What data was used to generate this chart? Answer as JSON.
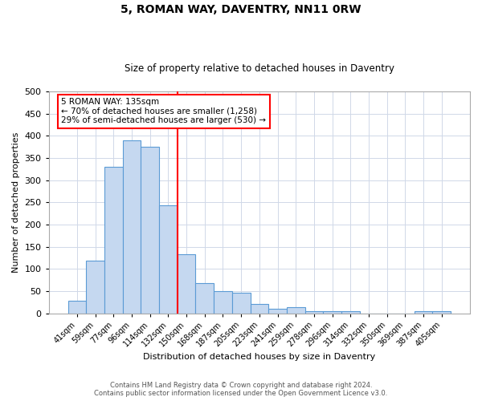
{
  "title": "5, ROMAN WAY, DAVENTRY, NN11 0RW",
  "subtitle": "Size of property relative to detached houses in Daventry",
  "xlabel": "Distribution of detached houses by size in Daventry",
  "ylabel": "Number of detached properties",
  "bar_labels": [
    "41sqm",
    "59sqm",
    "77sqm",
    "96sqm",
    "114sqm",
    "132sqm",
    "150sqm",
    "168sqm",
    "187sqm",
    "205sqm",
    "223sqm",
    "241sqm",
    "259sqm",
    "278sqm",
    "296sqm",
    "314sqm",
    "332sqm",
    "350sqm",
    "369sqm",
    "387sqm",
    "405sqm"
  ],
  "bar_values": [
    28,
    118,
    330,
    390,
    375,
    243,
    133,
    68,
    50,
    46,
    20,
    10,
    14,
    5,
    5,
    5,
    0,
    0,
    0,
    5,
    5
  ],
  "bar_color": "#c5d8f0",
  "bar_edge_color": "#5b9bd5",
  "vline_x": 5.5,
  "vline_color": "red",
  "ylim": [
    0,
    500
  ],
  "yticks": [
    0,
    50,
    100,
    150,
    200,
    250,
    300,
    350,
    400,
    450,
    500
  ],
  "annotation_title": "5 ROMAN WAY: 135sqm",
  "annotation_line1": "← 70% of detached houses are smaller (1,258)",
  "annotation_line2": "29% of semi-detached houses are larger (530) →",
  "annotation_box_color": "#ffffff",
  "annotation_box_edge_color": "red",
  "footer_line1": "Contains HM Land Registry data © Crown copyright and database right 2024.",
  "footer_line2": "Contains public sector information licensed under the Open Government Licence v3.0.",
  "background_color": "#ffffff",
  "grid_color": "#d0d8e8"
}
